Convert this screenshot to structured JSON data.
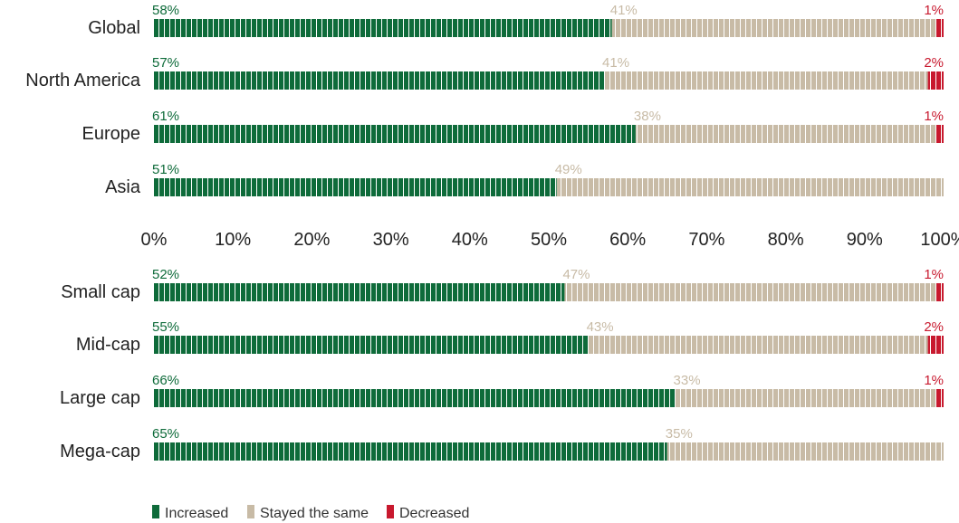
{
  "chart_data": {
    "type": "bar",
    "orientation": "horizontal",
    "stacked": true,
    "groups": [
      {
        "categories": [
          "Global",
          "North America",
          "Europe",
          "Asia"
        ],
        "series": [
          {
            "name": "Increased",
            "values": [
              58,
              57,
              61,
              51
            ]
          },
          {
            "name": "Stayed the same",
            "values": [
              41,
              41,
              38,
              49
            ]
          },
          {
            "name": "Decreased",
            "values": [
              1,
              2,
              1,
              0
            ]
          }
        ]
      },
      {
        "categories": [
          "Small cap",
          "Mid-cap",
          "Large cap",
          "Mega-cap"
        ],
        "series": [
          {
            "name": "Increased",
            "values": [
              52,
              55,
              66,
              65
            ]
          },
          {
            "name": "Stayed the same",
            "values": [
              47,
              43,
              33,
              35
            ]
          },
          {
            "name": "Decreased",
            "values": [
              1,
              2,
              1,
              0
            ]
          }
        ]
      }
    ],
    "xlim": [
      0,
      100
    ],
    "tick_labels": [
      "0%",
      "10%",
      "20%",
      "30%",
      "40%",
      "50%",
      "60%",
      "70%",
      "80%",
      "90%",
      "100%"
    ],
    "legend": {
      "placement": "bottom-left",
      "entries": [
        "Increased",
        "Stayed the same",
        "Decreased"
      ]
    },
    "grid": false
  },
  "colors": {
    "increased": "#0e6b3a",
    "stayed": "#c8bba6",
    "decreased": "#c8192e"
  }
}
